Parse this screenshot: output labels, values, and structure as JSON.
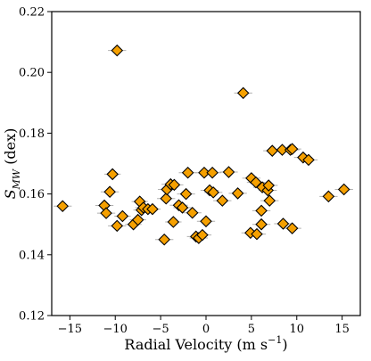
{
  "chart_data": {
    "type": "scatter",
    "xlabel": "Radial Velocity (m s",
    "xlabel_sup": "−1",
    "xlabel_end": ")",
    "ylabel_S": "S",
    "ylabel_sub": "MW",
    "ylabel_rest": " (dex)",
    "xlim": [
      -17,
      17
    ],
    "ylim": [
      0.12,
      0.22
    ],
    "xticks": [
      -15,
      -10,
      -5,
      0,
      5,
      10,
      15
    ],
    "xtick_labels": [
      "−15",
      "−10",
      "−5",
      "0",
      "5",
      "10",
      "15"
    ],
    "yticks": [
      0.12,
      0.14,
      0.16,
      0.18,
      0.2,
      0.22
    ],
    "ytick_labels": [
      "0.12",
      "0.14",
      "0.16",
      "0.18",
      "0.20",
      "0.22"
    ],
    "marker": "diamond",
    "marker_color": "#F5A000",
    "marker_edge_color": "#000000",
    "errorbar_color": "#b0b0b0",
    "grid": false,
    "points": [
      {
        "x": -15.8,
        "y": 0.156,
        "xerr": 1.0
      },
      {
        "x": -9.8,
        "y": 0.2072,
        "xerr": 1.0
      },
      {
        "x": -10.3,
        "y": 0.1665,
        "xerr": 0.9
      },
      {
        "x": -10.6,
        "y": 0.1607,
        "xerr": 1.0
      },
      {
        "x": -11.2,
        "y": 0.1562,
        "xerr": 1.0
      },
      {
        "x": -11.0,
        "y": 0.1537,
        "xerr": 1.0
      },
      {
        "x": -9.2,
        "y": 0.1527,
        "xerr": 0.9
      },
      {
        "x": -9.8,
        "y": 0.1495,
        "xerr": 1.0
      },
      {
        "x": -8.0,
        "y": 0.15,
        "xerr": 0.9
      },
      {
        "x": -7.5,
        "y": 0.1515,
        "xerr": 0.9
      },
      {
        "x": -7.3,
        "y": 0.1575,
        "xerr": 0.9
      },
      {
        "x": -7.1,
        "y": 0.1547,
        "xerr": 0.9
      },
      {
        "x": -6.9,
        "y": 0.1555,
        "xerr": 0.9
      },
      {
        "x": -6.4,
        "y": 0.155,
        "xerr": 0.9
      },
      {
        "x": -5.9,
        "y": 0.155,
        "xerr": 0.9
      },
      {
        "x": -4.6,
        "y": 0.145,
        "xerr": 1.0
      },
      {
        "x": -4.4,
        "y": 0.1585,
        "xerr": 1.0
      },
      {
        "x": -4.3,
        "y": 0.1615,
        "xerr": 1.0
      },
      {
        "x": -3.9,
        "y": 0.1632,
        "xerr": 1.0
      },
      {
        "x": -3.5,
        "y": 0.163,
        "xerr": 1.0
      },
      {
        "x": -3.6,
        "y": 0.1508,
        "xerr": 0.9
      },
      {
        "x": -3.0,
        "y": 0.1563,
        "xerr": 1.0
      },
      {
        "x": -2.6,
        "y": 0.1555,
        "xerr": 1.0
      },
      {
        "x": -2.2,
        "y": 0.16,
        "xerr": 1.0
      },
      {
        "x": -2.0,
        "y": 0.167,
        "xerr": 1.0
      },
      {
        "x": -1.5,
        "y": 0.1538,
        "xerr": 1.0
      },
      {
        "x": -1.1,
        "y": 0.146,
        "xerr": 1.0
      },
      {
        "x": -0.8,
        "y": 0.1455,
        "xerr": 1.0
      },
      {
        "x": -0.4,
        "y": 0.1465,
        "xerr": 1.0
      },
      {
        "x": -0.2,
        "y": 0.167,
        "xerr": 1.0
      },
      {
        "x": 0.0,
        "y": 0.151,
        "xerr": 1.0
      },
      {
        "x": 0.4,
        "y": 0.1612,
        "xerr": 1.0
      },
      {
        "x": 0.8,
        "y": 0.1605,
        "xerr": 1.0
      },
      {
        "x": 0.7,
        "y": 0.167,
        "xerr": 1.0
      },
      {
        "x": 1.8,
        "y": 0.1578,
        "xerr": 1.0
      },
      {
        "x": 2.5,
        "y": 0.1672,
        "xerr": 1.0
      },
      {
        "x": 3.5,
        "y": 0.1602,
        "xerr": 1.0
      },
      {
        "x": 4.1,
        "y": 0.1932,
        "xerr": 1.0
      },
      {
        "x": 4.9,
        "y": 0.1472,
        "xerr": 1.0
      },
      {
        "x": 5.0,
        "y": 0.1652,
        "xerr": 1.0
      },
      {
        "x": 5.5,
        "y": 0.1638,
        "xerr": 1.0
      },
      {
        "x": 5.6,
        "y": 0.1468,
        "xerr": 1.0
      },
      {
        "x": 6.1,
        "y": 0.1545,
        "xerr": 1.0
      },
      {
        "x": 6.1,
        "y": 0.15,
        "xerr": 1.0
      },
      {
        "x": 6.2,
        "y": 0.1622,
        "xerr": 1.0
      },
      {
        "x": 6.8,
        "y": 0.1612,
        "xerr": 1.0
      },
      {
        "x": 6.9,
        "y": 0.1628,
        "xerr": 1.0
      },
      {
        "x": 7.0,
        "y": 0.1578,
        "xerr": 1.0
      },
      {
        "x": 7.3,
        "y": 0.1742,
        "xerr": 1.0
      },
      {
        "x": 8.4,
        "y": 0.1745,
        "xerr": 1.0
      },
      {
        "x": 8.5,
        "y": 0.1502,
        "xerr": 1.0
      },
      {
        "x": 9.3,
        "y": 0.1745,
        "xerr": 1.0
      },
      {
        "x": 9.5,
        "y": 0.1748,
        "xerr": 1.0
      },
      {
        "x": 9.5,
        "y": 0.1487,
        "xerr": 1.0
      },
      {
        "x": 10.7,
        "y": 0.172,
        "xerr": 1.0
      },
      {
        "x": 11.3,
        "y": 0.1712,
        "xerr": 1.0
      },
      {
        "x": 13.5,
        "y": 0.1592,
        "xerr": 1.0
      },
      {
        "x": 15.2,
        "y": 0.1615,
        "xerr": 1.0
      }
    ]
  }
}
